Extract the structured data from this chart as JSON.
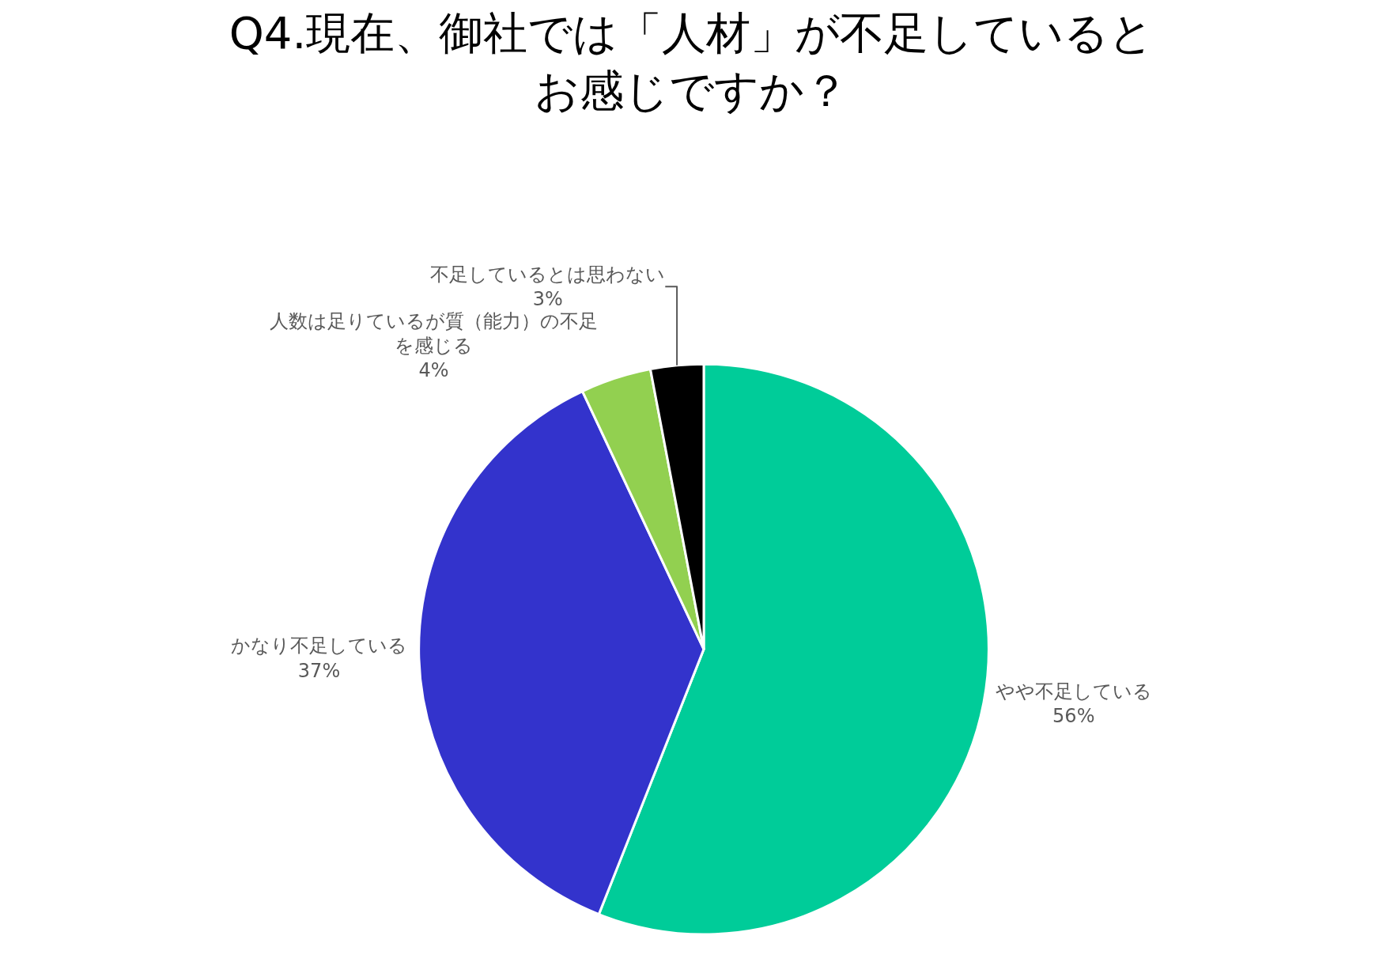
{
  "chart_data": {
    "type": "pie",
    "title": "Q4.現在、御社では「人材」が不足しているとお感じですか？",
    "categories": [
      "やや不足している",
      "かなり不足している",
      "人数は足りているが質（能力）の不足を感じる",
      "不足しているとは思わない"
    ],
    "values": [
      56,
      37,
      4,
      3
    ],
    "colors": [
      "#00cc99",
      "#3333cc",
      "#92d050",
      "#000000"
    ],
    "value_labels": [
      "56%",
      "37%",
      "4%",
      "3%"
    ],
    "legend": false
  }
}
